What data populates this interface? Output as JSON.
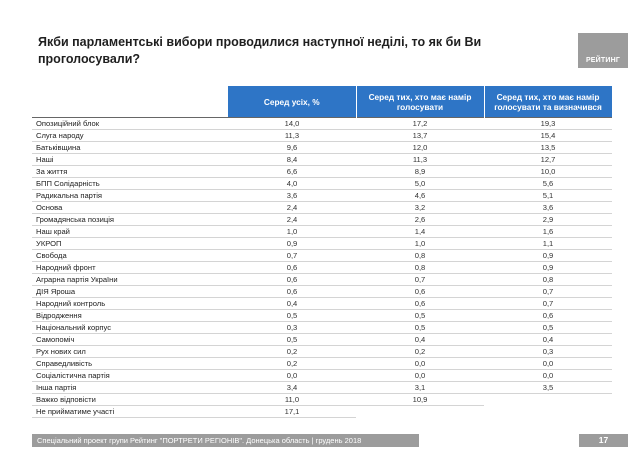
{
  "title": "Якби парламентські вибори проводилися наступної неділі, то як би Ви\nпроголосували?",
  "logo": {
    "text": "РЕЙТИНГ"
  },
  "table": {
    "columns": [
      "Серед усіх, %",
      "Серед тих, хто має намір голосувати",
      "Серед тих, хто має намір голосувати та визначився"
    ],
    "rows": [
      {
        "party": "Опозиційний блок",
        "all": "14,0",
        "voters": "17,2",
        "decided": "19,3"
      },
      {
        "party": "Слуга народу",
        "all": "11,3",
        "voters": "13,7",
        "decided": "15,4"
      },
      {
        "party": "Батьківщина",
        "all": "9,6",
        "voters": "12,0",
        "decided": "13,5"
      },
      {
        "party": "Наші",
        "all": "8,4",
        "voters": "11,3",
        "decided": "12,7"
      },
      {
        "party": "За життя",
        "all": "6,6",
        "voters": "8,9",
        "decided": "10,0"
      },
      {
        "party": "БПП Солідарність",
        "all": "4,0",
        "voters": "5,0",
        "decided": "5,6"
      },
      {
        "party": "Радикальна партія",
        "all": "3,6",
        "voters": "4,6",
        "decided": "5,1"
      },
      {
        "party": "Основа",
        "all": "2,4",
        "voters": "3,2",
        "decided": "3,6"
      },
      {
        "party": "Громадянська позиція",
        "all": "2,4",
        "voters": "2,6",
        "decided": "2,9"
      },
      {
        "party": "Наш край",
        "all": "1,0",
        "voters": "1,4",
        "decided": "1,6"
      },
      {
        "party": "УКРОП",
        "all": "0,9",
        "voters": "1,0",
        "decided": "1,1"
      },
      {
        "party": "Свобода",
        "all": "0,7",
        "voters": "0,8",
        "decided": "0,9"
      },
      {
        "party": "Народний фронт",
        "all": "0,6",
        "voters": "0,8",
        "decided": "0,9"
      },
      {
        "party": "Аграрна партія України",
        "all": "0,6",
        "voters": "0,7",
        "decided": "0,8"
      },
      {
        "party": "ДІЯ Яроша",
        "all": "0,6",
        "voters": "0,6",
        "decided": "0,7"
      },
      {
        "party": "Народний контроль",
        "all": "0,4",
        "voters": "0,6",
        "decided": "0,7"
      },
      {
        "party": "Відродження",
        "all": "0,5",
        "voters": "0,5",
        "decided": "0,6"
      },
      {
        "party": "Національний корпус",
        "all": "0,3",
        "voters": "0,5",
        "decided": "0,5"
      },
      {
        "party": "Самопоміч",
        "all": "0,5",
        "voters": "0,4",
        "decided": "0,4"
      },
      {
        "party": "Рух нових сил",
        "all": "0,2",
        "voters": "0,2",
        "decided": "0,3"
      },
      {
        "party": "Справедливість",
        "all": "0,2",
        "voters": "0,0",
        "decided": "0,0"
      },
      {
        "party": "Соціалістична партія",
        "all": "0,0",
        "voters": "0,0",
        "decided": "0,0"
      },
      {
        "party": "Інша партія",
        "all": "3,4",
        "voters": "3,1",
        "decided": "3,5"
      },
      {
        "party": "Важко відповісти",
        "all": "11,0",
        "voters": "10,9",
        "decided": ""
      },
      {
        "party": "Не прийматиме участі",
        "all": "17,1",
        "voters": "",
        "decided": ""
      }
    ]
  },
  "footer": {
    "text": "Спеціальний проект групи Рейтинг \"ПОРТРЕТИ РЕГІОНІВ\". Донецька область | грудень 2018"
  },
  "page_number": "17",
  "colors": {
    "header": "#2e75c6",
    "accent_gray": "#9c9c9c"
  }
}
